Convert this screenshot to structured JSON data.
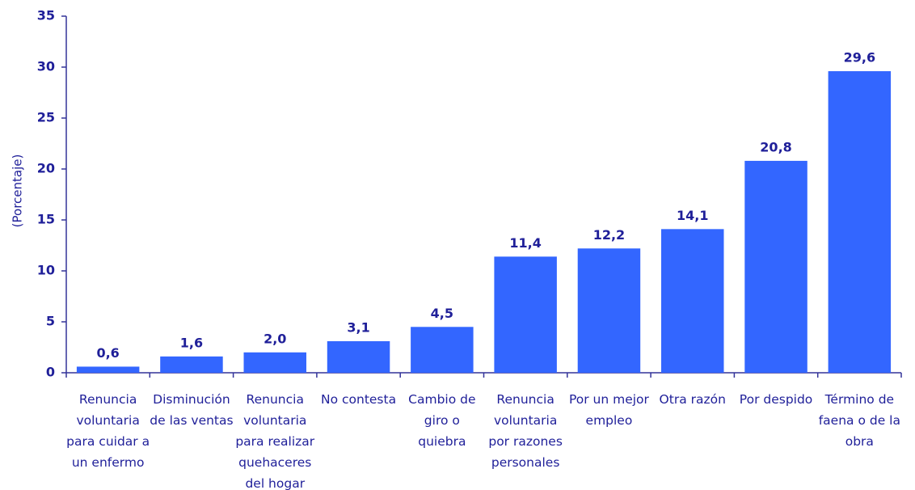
{
  "chart_data": {
    "type": "bar",
    "y_label": "(Porcentaje)",
    "categories": [
      "Renuncia voluntaria para cuidar a un enfermo",
      "Disminución de las ventas",
      "Renuncia voluntaria para realizar quehaceres del hogar",
      "No contesta",
      "Cambio de giro o quiebra",
      "Renuncia voluntaria por razones personales",
      "Por un mejor empleo",
      "Otra razón",
      "Por despido",
      "Término de faena o de la obra"
    ],
    "values": [
      0.6,
      1.6,
      2.0,
      3.1,
      4.5,
      11.4,
      12.2,
      14.1,
      20.8,
      29.6
    ],
    "value_labels": [
      "0,6",
      "1,6",
      "2,0",
      "3,1",
      "4,5",
      "11,4",
      "12,2",
      "14,1",
      "20,8",
      "29,6"
    ],
    "color": "#3366ff",
    "ylim": [
      0,
      35
    ],
    "yticks": [
      0,
      5,
      10,
      15,
      20,
      25,
      30,
      35
    ],
    "grid": false
  }
}
